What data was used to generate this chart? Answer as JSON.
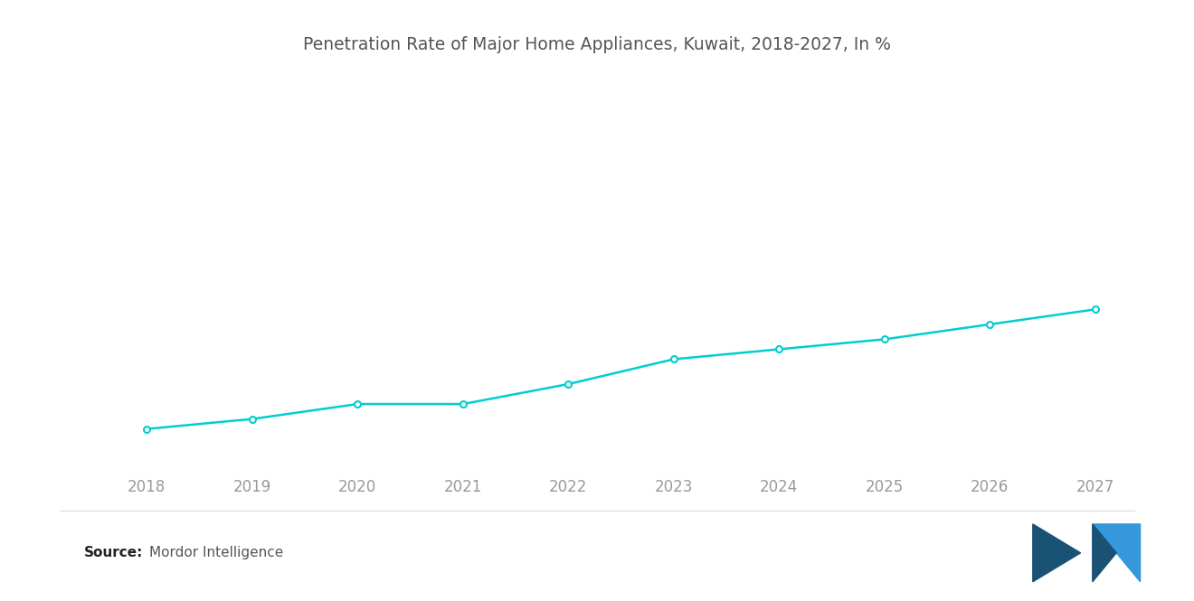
{
  "title": "Penetration Rate of Major Home Appliances, Kuwait, 2018-2027, In %",
  "years": [
    2018,
    2019,
    2020,
    2021,
    2022,
    2023,
    2024,
    2025,
    2026,
    2027
  ],
  "values": [
    28,
    30,
    33,
    33,
    37,
    42,
    44,
    46,
    49,
    52
  ],
  "line_color": "#00CED1",
  "background_color": "#FFFFFF",
  "source_label": "Source:",
  "source_text": "Mordor Intelligence",
  "title_fontsize": 13.5,
  "tick_fontsize": 12,
  "source_fontsize": 11,
  "figsize": [
    13.2,
    6.65
  ],
  "dpi": 100,
  "ylim_min": 20,
  "ylim_max": 90,
  "xlim_min": 2017.4,
  "xlim_max": 2027.6
}
